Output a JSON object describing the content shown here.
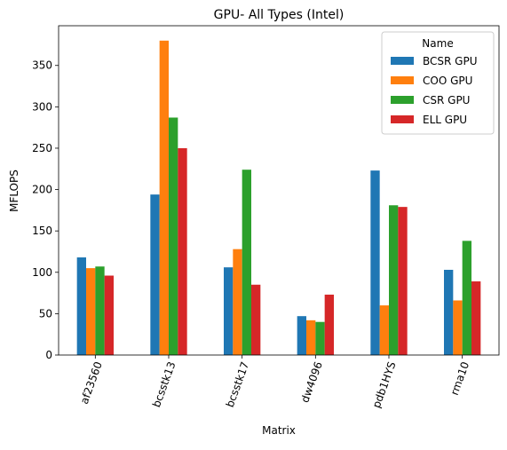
{
  "chart_data": {
    "type": "bar",
    "title": "GPU- All Types (Intel)",
    "xlabel": "Matrix",
    "ylabel": "MFLOPS",
    "categories": [
      "af23560",
      "bcsstk13",
      "bcsstk17",
      "dw4096",
      "pdb1HYS",
      "rma10"
    ],
    "series": [
      {
        "name": "BCSR GPU",
        "color": "#1f77b4",
        "values": [
          118,
          194,
          106,
          47,
          223,
          103
        ]
      },
      {
        "name": "COO GPU",
        "color": "#ff7f0e",
        "values": [
          105,
          380,
          128,
          42,
          60,
          66
        ]
      },
      {
        "name": "CSR GPU",
        "color": "#2ca02c",
        "values": [
          107,
          287,
          224,
          40,
          181,
          138
        ]
      },
      {
        "name": "ELL GPU",
        "color": "#d62728",
        "values": [
          96,
          250,
          85,
          73,
          179,
          89
        ]
      }
    ],
    "ylim": [
      0,
      398
    ],
    "yticks": [
      0,
      50,
      100,
      150,
      200,
      250,
      300,
      350
    ],
    "legend_title": "Name",
    "legend_position": "top-right",
    "grid": false,
    "xtick_rotation_deg": 70
  }
}
